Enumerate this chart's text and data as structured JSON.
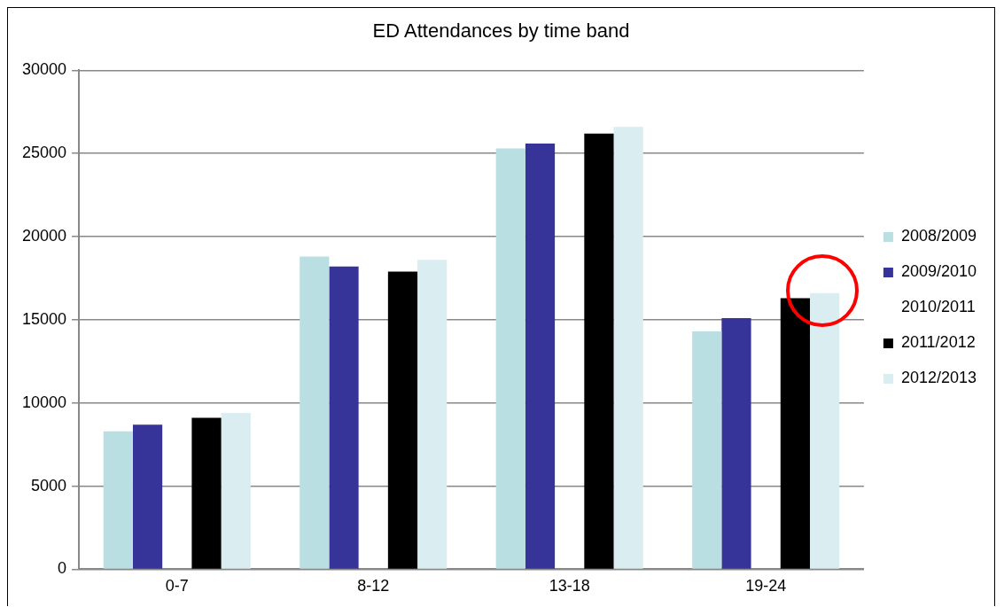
{
  "chart_data": {
    "type": "bar",
    "title": "ED Attendances by time band",
    "categories": [
      "0-7",
      "8-12",
      "13-18",
      "19-24"
    ],
    "series": [
      {
        "name": "2008/2009",
        "color": "#b9dfe2",
        "values": [
          8300,
          18800,
          25300,
          14300
        ]
      },
      {
        "name": "2009/2010",
        "color": "#363399",
        "values": [
          8700,
          18200,
          25600,
          15100
        ]
      },
      {
        "name": "2010/2011",
        "values": [
          null,
          null,
          null,
          null
        ]
      },
      {
        "name": "2011/2012",
        "color": "#000000",
        "values": [
          9100,
          17900,
          26200,
          16300
        ]
      },
      {
        "name": "2012/2013",
        "color": "#daedf0",
        "values": [
          9400,
          18600,
          26600,
          16600
        ]
      }
    ],
    "ylim": [
      0,
      30000
    ],
    "yticks": [
      0,
      5000,
      10000,
      15000,
      20000,
      25000,
      30000
    ],
    "grid": "y",
    "legend": "right"
  }
}
